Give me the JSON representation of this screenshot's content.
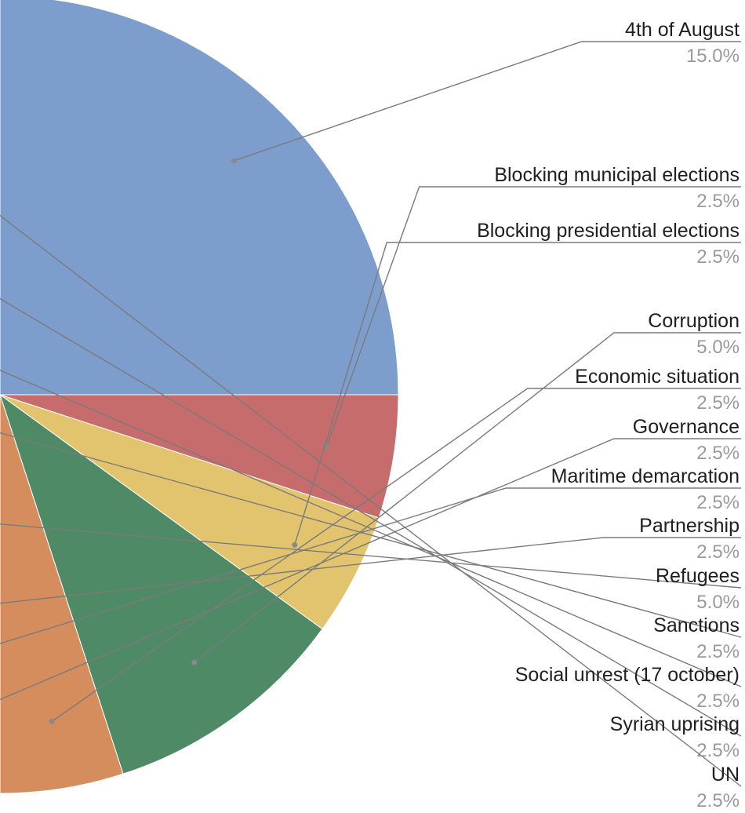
{
  "chart_data": {
    "type": "pie",
    "title": "",
    "slices": [
      {
        "label": "4th of August",
        "value": 15.0,
        "pct_text": "15.0%",
        "color": "#7d9dcc"
      },
      {
        "label": "Blocking municipal elections",
        "value": 2.5,
        "pct_text": "2.5%",
        "color": "#c76c6c"
      },
      {
        "label": "Blocking presidential elections",
        "value": 2.5,
        "pct_text": "2.5%",
        "color": "#e3c46e"
      },
      {
        "label": "Corruption",
        "value": 5.0,
        "pct_text": "5.0%",
        "color": "#4f8a66"
      },
      {
        "label": "Economic situation",
        "value": 2.5,
        "pct_text": "2.5%",
        "color": "#d58d5e"
      },
      {
        "label": "Governance",
        "value": 2.5,
        "pct_text": "2.5%",
        "color": "#6aa9ad"
      },
      {
        "label": "Maritime demarcation",
        "value": 2.5,
        "pct_text": "2.5%",
        "color": "#a9bfe3"
      },
      {
        "label": "Partnership",
        "value": 2.5,
        "pct_text": "2.5%",
        "color": "#d9a0a0"
      },
      {
        "label": "Refugees",
        "value": 5.0,
        "pct_text": "5.0%",
        "color": "#ead59a"
      },
      {
        "label": "Sanctions",
        "value": 2.5,
        "pct_text": "2.5%",
        "color": "#79a889"
      },
      {
        "label": "Social unrest (17 october)",
        "value": 2.5,
        "pct_text": "2.5%",
        "color": "#e6ad8c"
      },
      {
        "label": "Syrian uprising",
        "value": 2.5,
        "pct_text": "2.5%",
        "color": "#92c5c7"
      },
      {
        "label": "UN",
        "value": 2.5,
        "pct_text": "2.5%",
        "color": "#c8d7ee"
      }
    ]
  }
}
